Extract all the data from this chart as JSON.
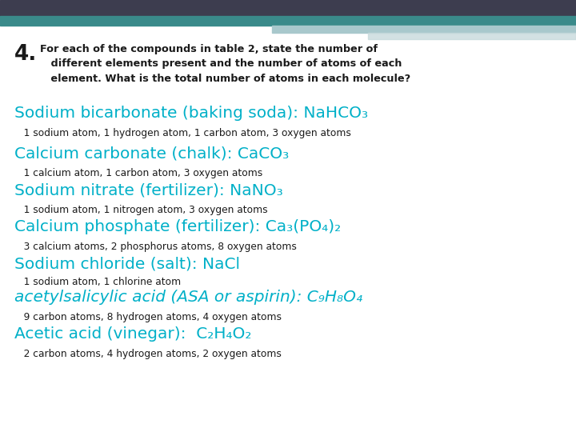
{
  "bg_color": "#ffffff",
  "header_dark": "#3d3d4f",
  "header_teal": "#3a8a8a",
  "header_light": "#a8c8cc",
  "cyan_color": "#00b0c8",
  "black_color": "#1a1a1a",
  "compounds": [
    {
      "title_plain": "Sodium bicarbonate (baking soda): NaHCO₃",
      "detail": "   1 sodium atom, 1 hydrogen atom, 1 carbon atom, 3 oxygen atoms",
      "italic": false
    },
    {
      "title_plain": "Calcium carbonate (chalk): CaCO₃",
      "detail": "   1 calcium atom, 1 carbon atom, 3 oxygen atoms",
      "italic": false
    },
    {
      "title_plain": "Sodium nitrate (fertilizer): NaNO₃",
      "detail": "   1 sodium atom, 1 nitrogen atom, 3 oxygen atoms",
      "italic": false
    },
    {
      "title_plain": "Calcium phosphate (fertilizer): Ca₃(PO₄)₂",
      "detail": "   3 calcium atoms, 2 phosphorus atoms, 8 oxygen atoms",
      "italic": false
    },
    {
      "title_plain": "Sodium chloride (salt): NaCl",
      "detail": "   1 sodium atom, 1 chlorine atom",
      "italic": false
    },
    {
      "title_plain": "acetylsalicylic acid (ASA or aspirin): C₉H₈O₄",
      "detail": "   9 carbon atoms, 8 hydrogen atoms, 4 oxygen atoms",
      "italic": true
    },
    {
      "title_plain": "Acetic acid (vinegar):  C₂H₄O₂",
      "detail": "   2 carbon atoms, 4 hydrogen atoms, 2 oxygen atoms",
      "italic": false
    }
  ]
}
